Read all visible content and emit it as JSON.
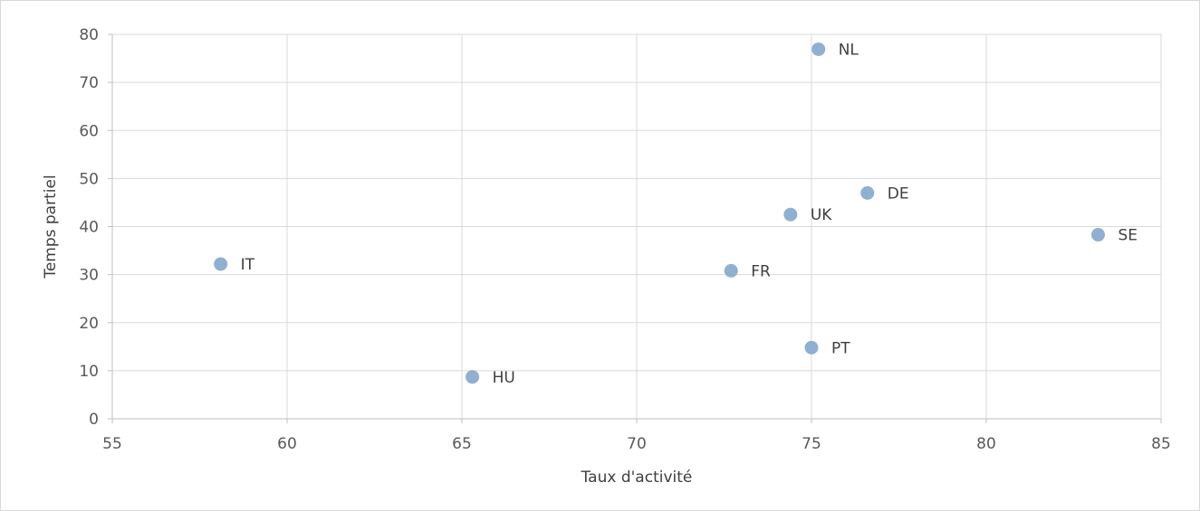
{
  "chart_data": {
    "type": "scatter",
    "title": "",
    "xlabel": "Taux d'activité",
    "ylabel": "Temps partiel",
    "xlim": [
      55,
      85
    ],
    "ylim": [
      0,
      80
    ],
    "x_ticks": [
      55,
      60,
      65,
      70,
      75,
      80,
      85
    ],
    "y_ticks": [
      0,
      10,
      20,
      30,
      40,
      50,
      60,
      70,
      80
    ],
    "grid": true,
    "legend": "none",
    "marker_color": "#8fb0d0",
    "points": [
      {
        "label": "IT",
        "x": 58.1,
        "y": 32.2
      },
      {
        "label": "HU",
        "x": 65.3,
        "y": 8.7
      },
      {
        "label": "FR",
        "x": 72.7,
        "y": 30.8
      },
      {
        "label": "UK",
        "x": 74.4,
        "y": 42.5
      },
      {
        "label": "PT",
        "x": 75.0,
        "y": 14.8
      },
      {
        "label": "NL",
        "x": 75.2,
        "y": 76.9
      },
      {
        "label": "DE",
        "x": 76.6,
        "y": 47.0
      },
      {
        "label": "SE",
        "x": 83.2,
        "y": 38.3
      }
    ]
  }
}
